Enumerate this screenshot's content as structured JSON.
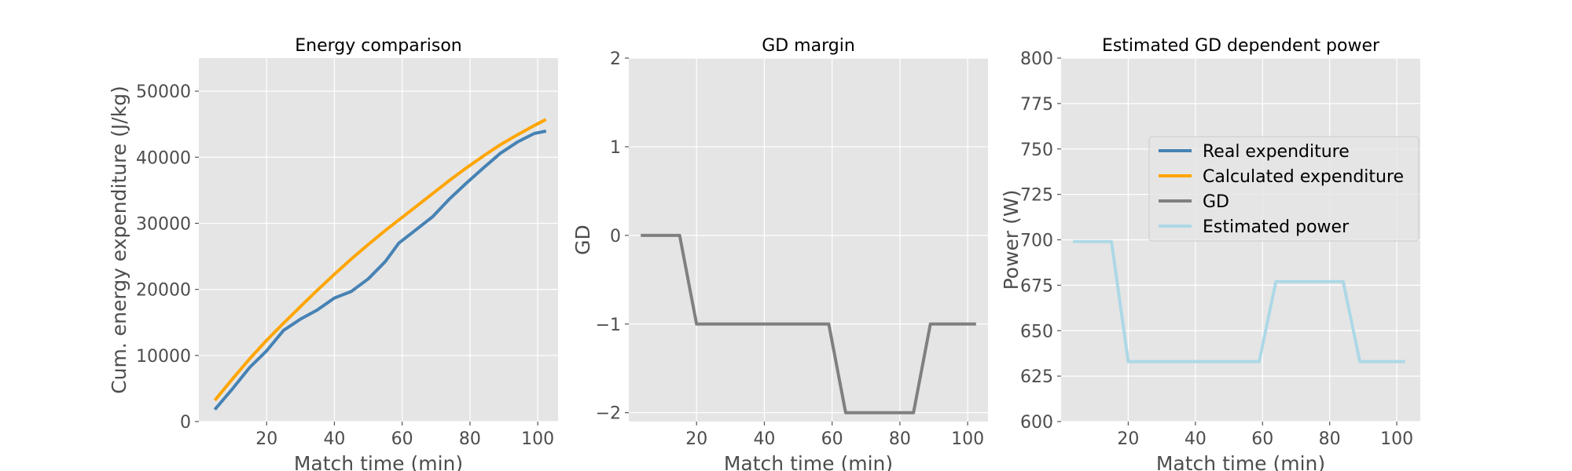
{
  "chart_data": [
    {
      "type": "line",
      "title": "Energy comparison",
      "xlabel": "Match time (min)",
      "ylabel": "Cum. energy expenditure (J/kg)",
      "xlim": [
        0,
        106
      ],
      "ylim": [
        0,
        55000
      ],
      "xticks": [
        20,
        40,
        60,
        80,
        100
      ],
      "yticks": [
        0,
        10000,
        20000,
        30000,
        40000,
        50000
      ],
      "ytick_labels": [
        "0",
        "10000",
        "20000",
        "30000",
        "40000",
        "50000"
      ],
      "grid": true,
      "series": [
        {
          "name": "Real expenditure",
          "color": "#4682b4",
          "x": [
            5,
            10,
            15,
            20,
            25,
            30,
            35,
            40,
            45,
            50,
            55,
            59,
            64,
            69,
            74,
            79,
            84,
            89,
            94,
            99,
            102
          ],
          "y": [
            2000,
            5000,
            8200,
            10700,
            13800,
            15500,
            16900,
            18700,
            19700,
            21600,
            24200,
            27000,
            29000,
            31000,
            33700,
            36100,
            38400,
            40600,
            42300,
            43600,
            43900
          ]
        },
        {
          "name": "Calculated expenditure",
          "color": "#ffa500",
          "x": [
            5,
            10,
            15,
            20,
            25,
            30,
            35,
            40,
            45,
            50,
            55,
            59,
            64,
            69,
            74,
            79,
            84,
            89,
            94,
            99,
            102
          ],
          "y": [
            3400,
            6500,
            9500,
            12300,
            14900,
            17400,
            19900,
            22300,
            24600,
            26800,
            28900,
            30500,
            32500,
            34500,
            36500,
            38400,
            40200,
            41900,
            43400,
            44800,
            45600
          ]
        }
      ]
    },
    {
      "type": "line",
      "title": "GD margin",
      "xlabel": "Match time (min)",
      "ylabel": "GD",
      "xlim": [
        0,
        106
      ],
      "ylim": [
        -2.1,
        2
      ],
      "xticks": [
        20,
        40,
        60,
        80,
        100
      ],
      "yticks": [
        -2,
        -1,
        0,
        1,
        2
      ],
      "ytick_labels": [
        "−2",
        "−1",
        "0",
        "1",
        "2"
      ],
      "grid": true,
      "series": [
        {
          "name": "GD",
          "color": "#808080",
          "x": [
            4,
            15,
            20,
            59,
            64,
            84,
            89,
            102
          ],
          "y": [
            0,
            0,
            -1,
            -1,
            -2,
            -2,
            -1,
            -1
          ]
        }
      ]
    },
    {
      "type": "line",
      "title": "Estimated GD dependent power",
      "xlabel": "Match time (min)",
      "ylabel": "Power (W)",
      "xlim": [
        0,
        107
      ],
      "ylim": [
        600,
        800
      ],
      "xticks": [
        20,
        40,
        60,
        80,
        100
      ],
      "yticks": [
        600,
        625,
        650,
        675,
        700,
        725,
        750,
        775,
        800
      ],
      "ytick_labels": [
        "600",
        "625",
        "650",
        "675",
        "700",
        "725",
        "750",
        "775",
        "800"
      ],
      "grid": true,
      "legend_position": "center-right",
      "legend": [
        {
          "label": "Real expenditure",
          "color": "#4682b4"
        },
        {
          "label": "Calculated expenditure",
          "color": "#ffa500"
        },
        {
          "label": "GD",
          "color": "#808080"
        },
        {
          "label": "Estimated power",
          "color": "#add8e6"
        }
      ],
      "series": [
        {
          "name": "Estimated power",
          "color": "#add8e6",
          "x": [
            4,
            15,
            20,
            59,
            64,
            84,
            89,
            102
          ],
          "y": [
            699,
            699,
            633,
            633,
            677,
            677,
            633,
            633
          ]
        }
      ]
    }
  ]
}
